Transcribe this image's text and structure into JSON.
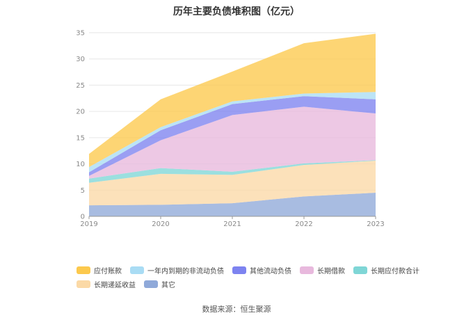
{
  "chart_data": {
    "type": "area",
    "stacked": true,
    "title": "历年主要负债堆积图（亿元）",
    "x": [
      "2019",
      "2020",
      "2021",
      "2022",
      "2023"
    ],
    "ylim": [
      0,
      35
    ],
    "yticks": [
      "0",
      "5",
      "10",
      "15",
      "20",
      "25",
      "30",
      "35"
    ],
    "grid": true,
    "legend_position": "bottom",
    "series": [
      {
        "name": "其它",
        "color": "#8fa9d9",
        "values": [
          2.1,
          2.2,
          2.5,
          3.8,
          4.5
        ]
      },
      {
        "name": "长期递延收益",
        "color": "#fbd9a6",
        "values": [
          4.3,
          5.9,
          5.4,
          6.0,
          6.1
        ]
      },
      {
        "name": "长期应付款合计",
        "color": "#7fd6d6",
        "values": [
          0.8,
          1.1,
          0.6,
          0.3,
          0.1
        ]
      },
      {
        "name": "长期借款",
        "color": "#e8b9dd",
        "values": [
          0.5,
          5.3,
          10.8,
          10.8,
          8.9
        ]
      },
      {
        "name": "其他流动负债",
        "color": "#7d83f0",
        "values": [
          0.7,
          1.9,
          2.1,
          2.0,
          2.7
        ]
      },
      {
        "name": "一年内到期的非流动负债",
        "color": "#a9dcf4",
        "values": [
          1.0,
          0.6,
          0.5,
          0.5,
          1.4
        ]
      },
      {
        "name": "应付账款",
        "color": "#fcc94d",
        "values": [
          2.5,
          5.3,
          5.7,
          9.6,
          11.1
        ]
      }
    ]
  },
  "legend": {
    "rows": [
      [
        "应付账款",
        "一年内到期的非流动负债",
        "其他流动负债",
        "长期借款",
        "长期应付款合计"
      ],
      [
        "长期递延收益",
        "其它"
      ]
    ]
  },
  "source": "数据来源：恒生聚源"
}
